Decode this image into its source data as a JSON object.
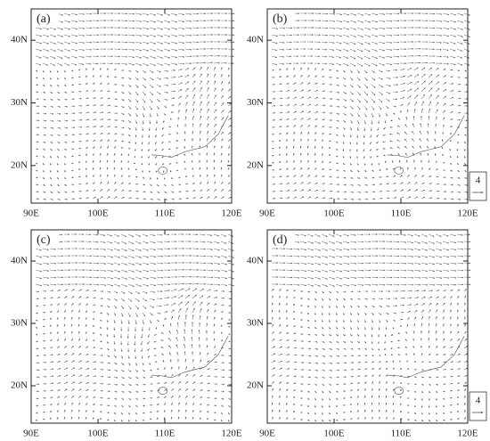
{
  "panels": [
    {
      "label": "(a)",
      "xlim": [
        90,
        120
      ],
      "ylim": [
        14,
        45
      ],
      "xticks": [
        {
          "value": 90,
          "label": "90E"
        },
        {
          "value": 100,
          "label": "100E"
        },
        {
          "value": 110,
          "label": "110E"
        },
        {
          "value": 120,
          "label": "120E"
        }
      ],
      "yticks": [
        {
          "value": 20,
          "label": "20N"
        },
        {
          "value": 30,
          "label": "30N"
        },
        {
          "value": 40,
          "label": "40N"
        }
      ]
    },
    {
      "label": "(b)",
      "xlim": [
        90,
        120
      ],
      "ylim": [
        14,
        45
      ],
      "xticks": [
        {
          "value": 90,
          "label": "90E"
        },
        {
          "value": 100,
          "label": "100E"
        },
        {
          "value": 110,
          "label": "110E"
        },
        {
          "value": 120,
          "label": "120E"
        }
      ],
      "yticks": [
        {
          "value": 20,
          "label": "20N"
        },
        {
          "value": 30,
          "label": "30N"
        },
        {
          "value": 40,
          "label": "40N"
        }
      ]
    },
    {
      "label": "(c)",
      "xlim": [
        90,
        120
      ],
      "ylim": [
        14,
        45
      ],
      "xticks": [
        {
          "value": 90,
          "label": "90E"
        },
        {
          "value": 100,
          "label": "100E"
        },
        {
          "value": 110,
          "label": "110E"
        },
        {
          "value": 120,
          "label": "120E"
        }
      ],
      "yticks": [
        {
          "value": 20,
          "label": "20N"
        },
        {
          "value": 30,
          "label": "30N"
        },
        {
          "value": 40,
          "label": "40N"
        }
      ]
    },
    {
      "label": "(d)",
      "xlim": [
        90,
        120
      ],
      "ylim": [
        14,
        45
      ],
      "xticks": [
        {
          "value": 90,
          "label": "90E"
        },
        {
          "value": 100,
          "label": "100E"
        },
        {
          "value": 110,
          "label": "110E"
        },
        {
          "value": 120,
          "label": "120E"
        }
      ],
      "yticks": [
        {
          "value": 20,
          "label": "20N"
        },
        {
          "value": 30,
          "label": "30N"
        },
        {
          "value": 40,
          "label": "40N"
        }
      ]
    }
  ],
  "reference_vectors": [
    4,
    4
  ]
}
